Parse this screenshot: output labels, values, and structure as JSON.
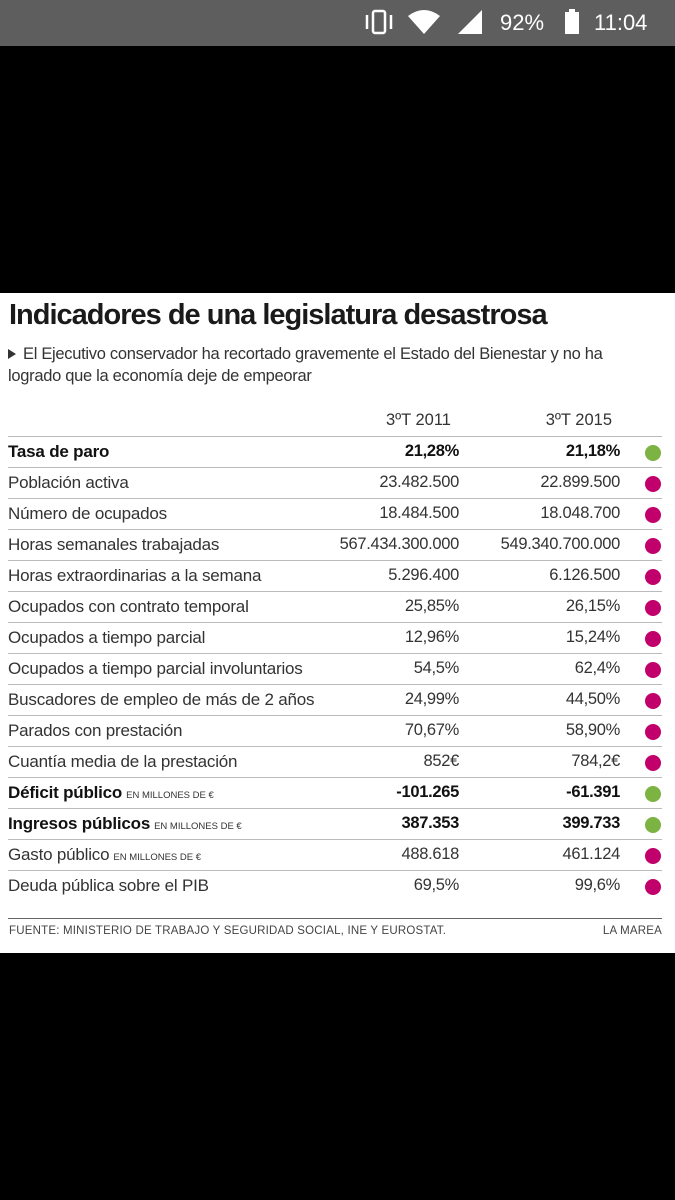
{
  "status_bar": {
    "battery": "92%",
    "time": "11:04"
  },
  "article": {
    "title": "Indicadores de una legislatura desastrosa",
    "subtitle": "El Ejecutivo conservador ha recortado gravemente el Estado del Bienestar y no ha logrado que la economía deje de empeorar",
    "columns": [
      "3ºT 2011",
      "3ºT 2015"
    ],
    "rows": [
      {
        "label": "Tasa de paro",
        "values": [
          "21,28%",
          "21,18%"
        ],
        "bold": true,
        "dot_color": "#7cb342"
      },
      {
        "label": "Población activa",
        "values": [
          "23.482.500",
          "22.899.500"
        ],
        "dot_color": "#c2006b"
      },
      {
        "label": "Número de ocupados",
        "values": [
          "18.484.500",
          "18.048.700"
        ],
        "dot_color": "#c2006b"
      },
      {
        "label": "Horas semanales trabajadas",
        "values": [
          "567.434.300.000",
          "549.340.700.000"
        ],
        "dot_color": "#c2006b"
      },
      {
        "label": "Horas extraordinarias a la semana",
        "values": [
          "5.296.400",
          "6.126.500"
        ],
        "dot_color": "#c2006b"
      },
      {
        "label": "Ocupados con contrato temporal",
        "values": [
          "25,85%",
          "26,15%"
        ],
        "dot_color": "#c2006b"
      },
      {
        "label": "Ocupados a tiempo parcial",
        "values": [
          "12,96%",
          "15,24%"
        ],
        "dot_color": "#c2006b"
      },
      {
        "label": "Ocupados a tiempo parcial involuntarios",
        "values": [
          "54,5%",
          "62,4%"
        ],
        "dot_color": "#c2006b"
      },
      {
        "label": "Buscadores de empleo de más de 2 años",
        "values": [
          "24,99%",
          "44,50%"
        ],
        "dot_color": "#c2006b"
      },
      {
        "label": "Parados con prestación",
        "values": [
          "70,67%",
          "58,90%"
        ],
        "dot_color": "#c2006b"
      },
      {
        "label": "Cuantía media de la prestación",
        "values": [
          "852€",
          "784,2€"
        ],
        "dot_color": "#c2006b"
      },
      {
        "label": "Déficit público",
        "unit": "EN MILLONES DE €",
        "values": [
          "-101.265",
          "-61.391"
        ],
        "bold": true,
        "dot_color": "#7cb342"
      },
      {
        "label": "Ingresos públicos",
        "unit": "EN MILLONES DE €",
        "values": [
          "387.353",
          "399.733"
        ],
        "bold": true,
        "dot_color": "#7cb342"
      },
      {
        "label": "Gasto público",
        "unit": "EN MILLONES DE €",
        "values": [
          "488.618",
          "461.124"
        ],
        "dot_color": "#c2006b"
      },
      {
        "label": "Deuda pública sobre el PIB",
        "values": [
          "69,5%",
          "99,6%"
        ],
        "dot_color": "#c2006b"
      }
    ],
    "source": "FUENTE: MINISTERIO DE TRABAJO Y SEGURIDAD SOCIAL, INE Y EUROSTAT.",
    "credit": "LA MAREA"
  }
}
